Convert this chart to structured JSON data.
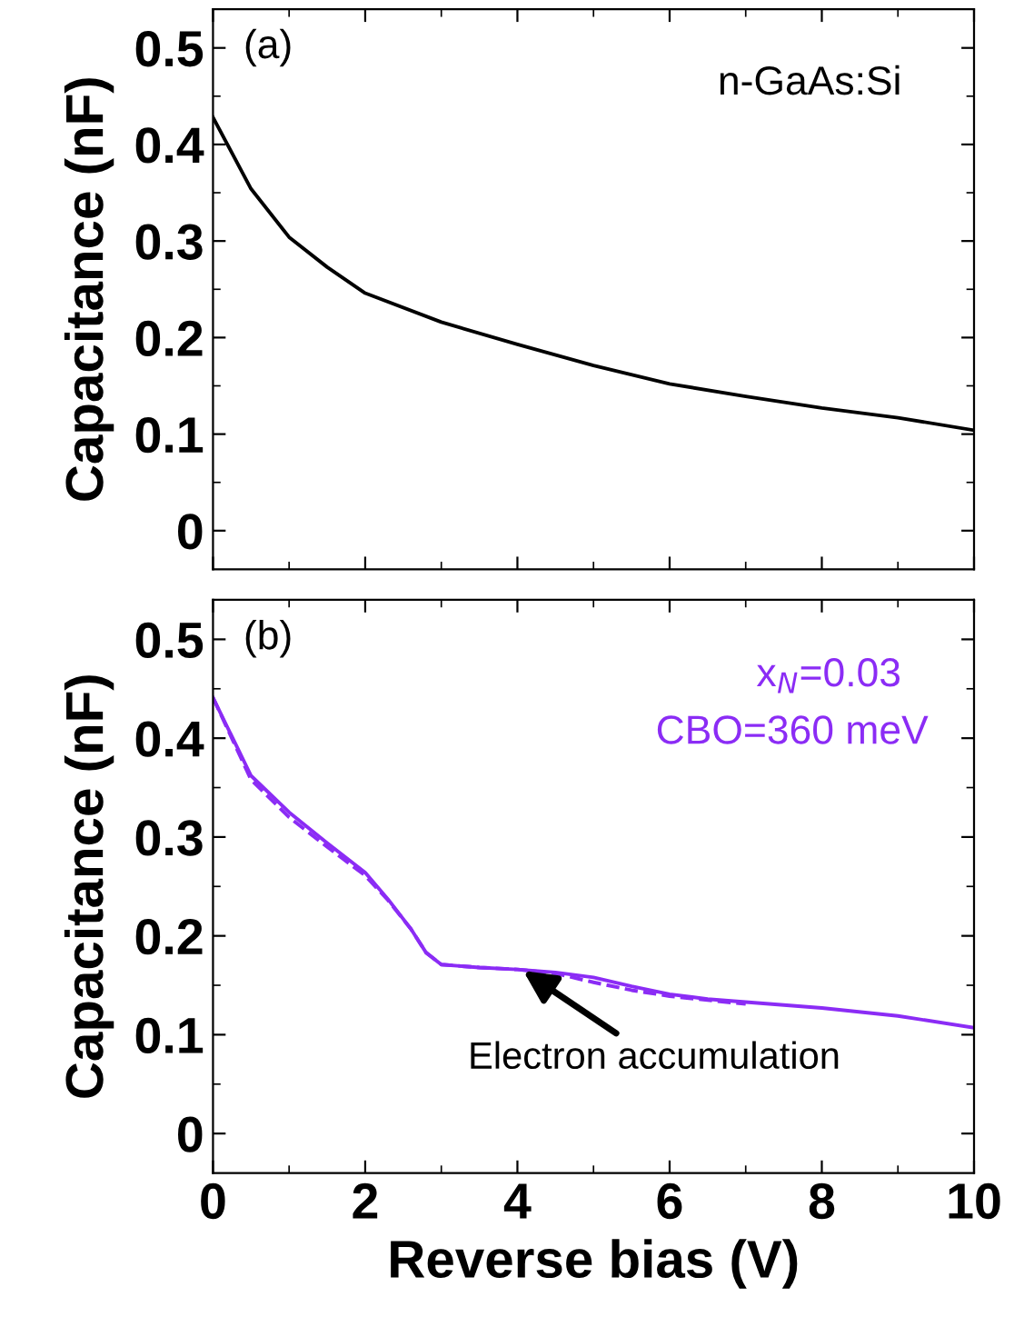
{
  "chart_data": [
    {
      "type": "line",
      "ylabel": "Capacitance (nF)",
      "xlim": [
        0,
        10
      ],
      "ylim": [
        -0.04,
        0.54
      ],
      "yticks": [
        0,
        0.1,
        0.2,
        0.3,
        0.4,
        0.5
      ],
      "xticks": [
        0,
        2,
        4,
        6,
        8,
        10
      ],
      "tick_labels": "y",
      "grid": false,
      "legend": false,
      "annotations": [
        "(a)",
        "n-GaAs:Si"
      ],
      "series": [
        {
          "color": "#000000",
          "line_style": "solid",
          "x": [
            0,
            0.5,
            1,
            1.5,
            2,
            3,
            4,
            5,
            6,
            7,
            8,
            9,
            10
          ],
          "values": [
            0.428,
            0.354,
            0.304,
            0.273,
            0.246,
            0.216,
            0.193,
            0.171,
            0.152,
            0.139,
            0.127,
            0.117,
            0.104
          ]
        }
      ]
    },
    {
      "type": "line",
      "xlabel": "Reverse bias (V)",
      "ylabel": "Capacitance (nF)",
      "xlim": [
        0,
        10
      ],
      "ylim": [
        -0.04,
        0.54
      ],
      "yticks": [
        0,
        0.1,
        0.2,
        0.3,
        0.4,
        0.5
      ],
      "xticks": [
        0,
        2,
        4,
        6,
        8,
        10
      ],
      "grid": false,
      "legend": false,
      "annotations": [
        "(b)",
        "x$_{N}$=0.03",
        "CBO=360 meV",
        {
          "text": "Electron accumulation",
          "x": 4.05,
          "y": 0.166
        }
      ],
      "series": [
        {
          "color": "#8b2cf5",
          "line_style": "solid",
          "x": [
            0,
            0.5,
            1,
            1.5,
            2,
            2.3,
            2.6,
            2.8,
            3,
            3.5,
            4,
            4.5,
            5,
            5.5,
            6,
            6.5,
            7,
            8,
            9,
            10
          ],
          "values": [
            0.441,
            0.362,
            0.325,
            0.294,
            0.264,
            0.237,
            0.207,
            0.183,
            0.171,
            0.168,
            0.166,
            0.163,
            0.158,
            0.149,
            0.141,
            0.136,
            0.133,
            0.127,
            0.119,
            0.107
          ]
        },
        {
          "color": "#8b2cf5",
          "line_style": "dashed",
          "x": [
            0,
            0.5,
            1,
            1.5,
            2,
            2.3,
            2.6,
            2.8,
            3,
            3.5,
            4,
            4.5,
            5,
            5.5,
            6,
            6.5,
            7
          ],
          "values": [
            0.441,
            0.358,
            0.32,
            0.29,
            0.261,
            0.236,
            0.207,
            0.183,
            0.171,
            0.168,
            0.166,
            0.162,
            0.153,
            0.145,
            0.139,
            0.135,
            0.131
          ]
        }
      ]
    }
  ]
}
